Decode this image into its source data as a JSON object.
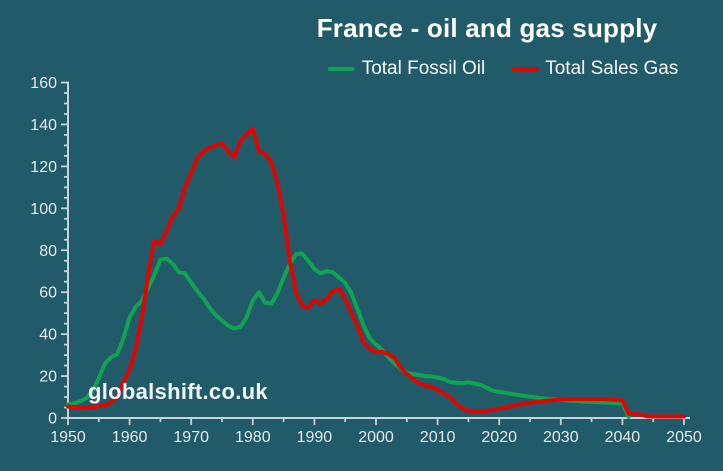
{
  "header": {
    "title": "France - oil and gas supply"
  },
  "legend": [
    {
      "label": "Total Fossil Oil",
      "color": "#10A452"
    },
    {
      "label": "Total Sales Gas",
      "color": "#E10500"
    }
  ],
  "watermark": "globalshift.co.uk",
  "colors": {
    "background": "#215A68",
    "axis": "#C9D3D7",
    "tick_text": "#E3EBED",
    "title_text": "#FFFFFF"
  },
  "chart_data": {
    "type": "line",
    "title": "France - oil and gas supply",
    "xlabel": "",
    "ylabel": "",
    "xlim": [
      1950,
      2050
    ],
    "ylim": [
      0,
      160
    ],
    "x_ticks": [
      1950,
      1960,
      1970,
      1980,
      1990,
      2000,
      2010,
      2020,
      2030,
      2040,
      2050
    ],
    "y_ticks": [
      0,
      20,
      40,
      60,
      80,
      100,
      120,
      140,
      160
    ],
    "x_minor_step": 5,
    "y_minor_step": 5,
    "grid": false,
    "legend_position": "top-center",
    "x_years": {
      "start": 1950,
      "end": 2050,
      "step": 1
    },
    "series": [
      {
        "name": "Total Fossil Oil",
        "color": "#10A452",
        "values": [
          6.5,
          7,
          8,
          9.5,
          13,
          19,
          26,
          29,
          30.5,
          38,
          48,
          53,
          56,
          62,
          68,
          75.5,
          76,
          73.5,
          69.5,
          69,
          64.5,
          60.5,
          57,
          52.5,
          49,
          46.5,
          44,
          42.7,
          43.5,
          48,
          56,
          60,
          55,
          54.5,
          59.5,
          67,
          73.5,
          78,
          78.5,
          75,
          71,
          69,
          70,
          69.5,
          67,
          64.5,
          59.5,
          52,
          44,
          38,
          35,
          32.5,
          29,
          26,
          23.5,
          21.5,
          21,
          20.5,
          20,
          19.8,
          19.3,
          18.6,
          17.2,
          16.8,
          16.6,
          17,
          16.4,
          15.8,
          14.3,
          13,
          12.4,
          12,
          11.5,
          11,
          10.6,
          10.2,
          9.8,
          9.4,
          9.1,
          8.8,
          8.6,
          8.4,
          8.2,
          8,
          7.8,
          7.7,
          7.5,
          7.4,
          7.3,
          7.2,
          7,
          0.5,
          null,
          null,
          null,
          null,
          null,
          null,
          null,
          null,
          null
        ]
      },
      {
        "name": "Total Sales Gas",
        "color": "#E10500",
        "values": [
          5.5,
          5.2,
          5,
          5,
          5.3,
          5.6,
          6,
          7.5,
          10,
          17,
          23,
          33,
          48,
          68,
          84.5,
          83,
          89,
          96,
          100,
          110,
          117,
          124,
          127,
          129,
          130,
          131,
          127,
          124.5,
          132,
          135.5,
          138,
          127,
          126,
          122,
          112,
          97,
          75,
          60,
          53.5,
          52.5,
          56,
          54.5,
          57,
          60.5,
          61.5,
          57,
          50,
          44,
          36,
          33,
          31.5,
          31.5,
          30.5,
          28.5,
          24,
          21,
          18.5,
          16.5,
          15.5,
          14.8,
          13.5,
          11.5,
          10,
          7,
          4.5,
          3.5,
          3.3,
          3.3,
          3.4,
          3.8,
          4.4,
          5,
          5.8,
          6.3,
          6.8,
          7.3,
          7.7,
          8,
          8.3,
          8.6,
          8.8,
          9,
          9,
          9,
          9,
          9,
          9,
          9,
          8.8,
          8.6,
          8.5,
          2,
          1.8,
          1.6,
          0.8,
          0.7,
          0.7,
          0.7,
          0.7,
          0.7,
          0.7
        ]
      }
    ]
  }
}
